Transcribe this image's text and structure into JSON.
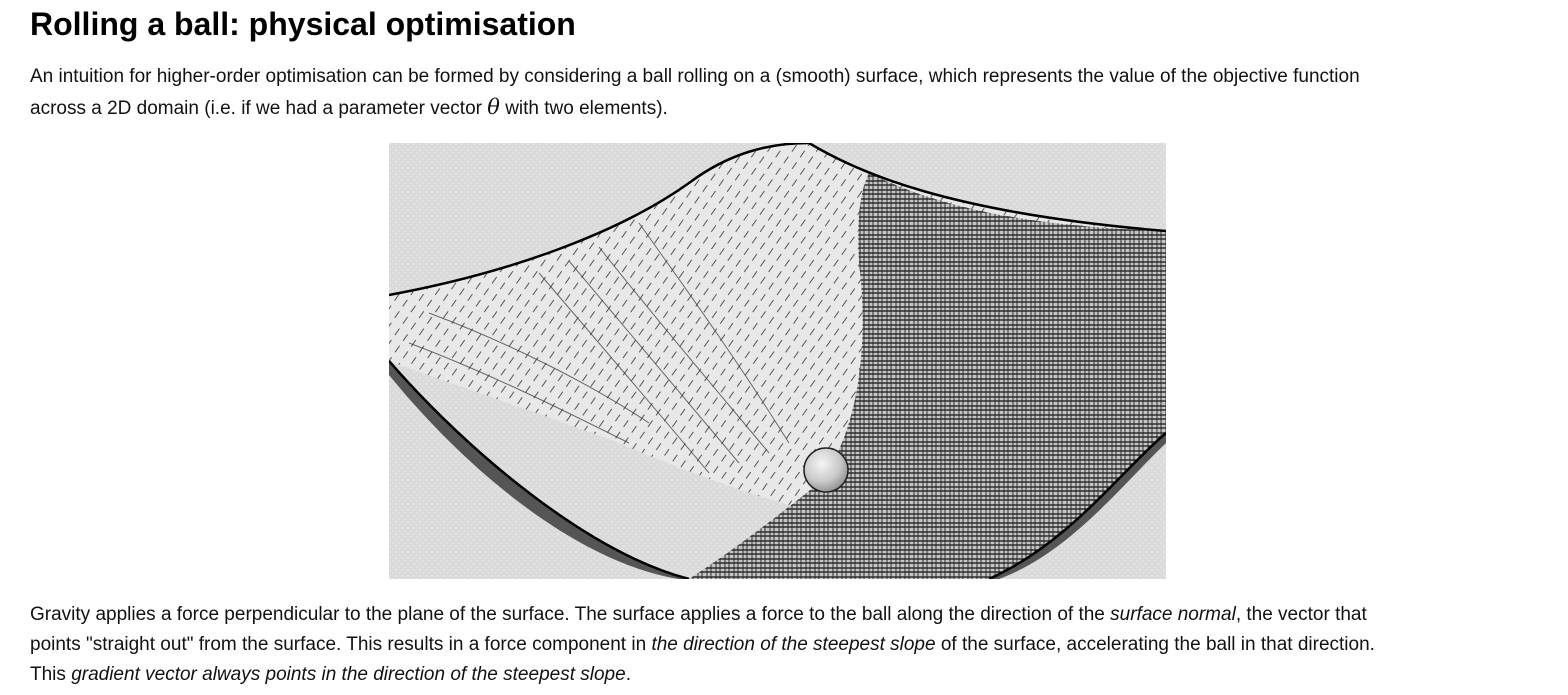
{
  "heading": "Rolling a ball: physical optimisation",
  "intro": {
    "line1": "An intuition for higher-order optimisation can be formed by considering a ball rolling on a (smooth) surface, which represents the value of the objective function",
    "line2_before": "across a 2D domain (i.e. if we had a parameter vector ",
    "symbol": "θ",
    "line2_after": " with two elements)."
  },
  "figure": {
    "description_icon": "ball-on-surface-illustration"
  },
  "body": {
    "line1_before": "Gravity applies a force perpendicular to the plane of the surface. The surface applies a force to the ball along the direction of the ",
    "line1_em": "surface normal",
    "line1_after": ", the vector that",
    "line2_before": "points \"straight out\" from the surface. This results in a force component in ",
    "line2_em": "the direction of the steepest slope",
    "line2_after": " of the surface, accelerating the ball in that direction.",
    "line3_before": "This ",
    "line3_em": "gradient vector always points in the direction of the steepest slope",
    "line3_after": "."
  }
}
